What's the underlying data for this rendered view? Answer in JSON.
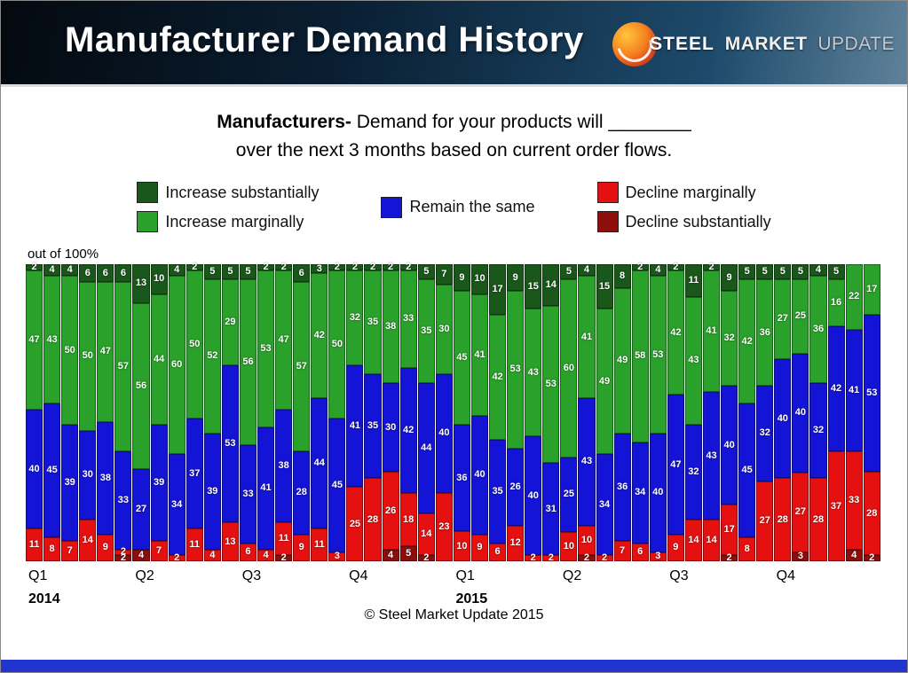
{
  "header": {
    "title": "Manufacturer Demand History",
    "logo": {
      "steel": "STEEL",
      "market": "MARKET",
      "update": "UPDATE"
    }
  },
  "subtitle": {
    "lead": "Manufacturers-",
    "line1_rest": " Demand for your products will ________",
    "line2": "over the next 3 months based on current order flows."
  },
  "legend": {
    "col1": [
      {
        "label": "Increase substantially",
        "color": "#1a571a"
      },
      {
        "label": "Increase marginally",
        "color": "#2aa12a"
      }
    ],
    "col2": [
      {
        "label": "Remain the same",
        "color": "#1414d6"
      }
    ],
    "col3": [
      {
        "label": "Decline marginally",
        "color": "#e51111"
      },
      {
        "label": "Decline substantially",
        "color": "#8e0d0d"
      }
    ]
  },
  "chart_data": {
    "type": "bar",
    "stacked": true,
    "note": "out of 100%",
    "ylim": [
      0,
      100
    ],
    "values_order": [
      "decline_substantially",
      "decline_marginally",
      "remain_same",
      "increase_marginally",
      "increase_substantially"
    ],
    "series": [
      {
        "key": "decline-substantially",
        "name": "Decline substantially",
        "color": "#8e0d0d"
      },
      {
        "key": "decline-marginally",
        "name": "Decline marginally",
        "color": "#e51111"
      },
      {
        "key": "remain-same",
        "name": "Remain the same",
        "color": "#1414d6"
      },
      {
        "key": "increase-marginally",
        "name": "Increase marginally",
        "color": "#2aa12a"
      },
      {
        "key": "increase-substantially",
        "name": "Increase substantially",
        "color": "#1a571a"
      }
    ],
    "quarters": [
      {
        "label": "Q1",
        "year": "2014"
      },
      {
        "label": "Q2",
        "year": ""
      },
      {
        "label": "Q3",
        "year": ""
      },
      {
        "label": "Q4",
        "year": ""
      },
      {
        "label": "Q1",
        "year": "2015"
      },
      {
        "label": "Q2",
        "year": ""
      },
      {
        "label": "Q3",
        "year": ""
      },
      {
        "label": "Q4",
        "year": ""
      }
    ],
    "bars": [
      {
        "quarter": "Q1 2014",
        "values": [
          0,
          11,
          40,
          47,
          2
        ]
      },
      {
        "quarter": "Q1 2014",
        "values": [
          0,
          8,
          45,
          43,
          4
        ]
      },
      {
        "quarter": "Q1 2014",
        "values": [
          0,
          7,
          39,
          50,
          4
        ]
      },
      {
        "quarter": "Q1 2014",
        "values": [
          0,
          14,
          30,
          50,
          6
        ]
      },
      {
        "quarter": "Q1 2014",
        "values": [
          0,
          9,
          38,
          47,
          6
        ]
      },
      {
        "quarter": "Q1 2014",
        "values": [
          2,
          2,
          33,
          57,
          6
        ]
      },
      {
        "quarter": "Q2 2014",
        "values": [
          4,
          0,
          27,
          56,
          13
        ]
      },
      {
        "quarter": "Q2 2014",
        "values": [
          0,
          7,
          39,
          44,
          10
        ]
      },
      {
        "quarter": "Q2 2014",
        "values": [
          0,
          2,
          34,
          60,
          4
        ]
      },
      {
        "quarter": "Q2 2014",
        "values": [
          0,
          11,
          37,
          50,
          2
        ]
      },
      {
        "quarter": "Q2 2014",
        "values": [
          0,
          4,
          39,
          52,
          5
        ]
      },
      {
        "quarter": "Q2 2014",
        "values": [
          0,
          13,
          53,
          29,
          5
        ]
      },
      {
        "quarter": "Q3 2014",
        "values": [
          0,
          6,
          33,
          56,
          5
        ]
      },
      {
        "quarter": "Q3 2014",
        "values": [
          0,
          4,
          41,
          53,
          2
        ]
      },
      {
        "quarter": "Q3 2014",
        "values": [
          2,
          11,
          38,
          47,
          2
        ]
      },
      {
        "quarter": "Q3 2014",
        "values": [
          0,
          9,
          28,
          57,
          6
        ]
      },
      {
        "quarter": "Q3 2014",
        "values": [
          0,
          11,
          44,
          42,
          3
        ]
      },
      {
        "quarter": "Q3 2014",
        "values": [
          0,
          3,
          45,
          50,
          2
        ]
      },
      {
        "quarter": "Q4 2014",
        "values": [
          0,
          25,
          41,
          32,
          2
        ]
      },
      {
        "quarter": "Q4 2014",
        "values": [
          0,
          28,
          35,
          35,
          2
        ]
      },
      {
        "quarter": "Q4 2014",
        "values": [
          4,
          26,
          30,
          38,
          2
        ]
      },
      {
        "quarter": "Q4 2014",
        "values": [
          5,
          18,
          42,
          33,
          2
        ]
      },
      {
        "quarter": "Q4 2014",
        "values": [
          2,
          14,
          44,
          35,
          5
        ]
      },
      {
        "quarter": "Q4 2014",
        "values": [
          0,
          23,
          40,
          30,
          7
        ]
      },
      {
        "quarter": "Q1 2015",
        "values": [
          0,
          10,
          36,
          45,
          9
        ]
      },
      {
        "quarter": "Q1 2015",
        "values": [
          0,
          9,
          40,
          41,
          10
        ]
      },
      {
        "quarter": "Q1 2015",
        "values": [
          0,
          6,
          35,
          42,
          17
        ]
      },
      {
        "quarter": "Q1 2015",
        "values": [
          0,
          12,
          26,
          53,
          9
        ]
      },
      {
        "quarter": "Q1 2015",
        "values": [
          0,
          2,
          40,
          43,
          15
        ]
      },
      {
        "quarter": "Q1 2015",
        "values": [
          0,
          2,
          31,
          53,
          14
        ]
      },
      {
        "quarter": "Q2 2015",
        "values": [
          0,
          10,
          25,
          60,
          5
        ]
      },
      {
        "quarter": "Q2 2015",
        "values": [
          2,
          10,
          43,
          41,
          4
        ]
      },
      {
        "quarter": "Q2 2015",
        "values": [
          0,
          2,
          34,
          49,
          15
        ]
      },
      {
        "quarter": "Q2 2015",
        "values": [
          0,
          7,
          36,
          49,
          8
        ]
      },
      {
        "quarter": "Q2 2015",
        "values": [
          0,
          6,
          34,
          58,
          2
        ]
      },
      {
        "quarter": "Q2 2015",
        "values": [
          0,
          3,
          40,
          53,
          4
        ]
      },
      {
        "quarter": "Q3 2015",
        "values": [
          0,
          9,
          47,
          42,
          2
        ]
      },
      {
        "quarter": "Q3 2015",
        "values": [
          0,
          14,
          32,
          43,
          11
        ]
      },
      {
        "quarter": "Q3 2015",
        "values": [
          0,
          14,
          43,
          41,
          2
        ]
      },
      {
        "quarter": "Q3 2015",
        "values": [
          2,
          17,
          40,
          32,
          9
        ]
      },
      {
        "quarter": "Q3 2015",
        "values": [
          0,
          8,
          45,
          42,
          5
        ]
      },
      {
        "quarter": "Q3 2015",
        "values": [
          0,
          27,
          32,
          36,
          5
        ]
      },
      {
        "quarter": "Q4 2015",
        "values": [
          0,
          28,
          40,
          27,
          5
        ]
      },
      {
        "quarter": "Q4 2015",
        "values": [
          3,
          27,
          40,
          25,
          5
        ]
      },
      {
        "quarter": "Q4 2015",
        "values": [
          0,
          28,
          32,
          36,
          4
        ]
      },
      {
        "quarter": "Q4 2015",
        "values": [
          0,
          37,
          42,
          16,
          5
        ]
      },
      {
        "quarter": "Q4 2015",
        "values": [
          4,
          33,
          41,
          22,
          0
        ]
      },
      {
        "quarter": "Q4 2015",
        "values": [
          2,
          28,
          53,
          17,
          0
        ]
      }
    ]
  },
  "footer": "© Steel Market Update 2015"
}
